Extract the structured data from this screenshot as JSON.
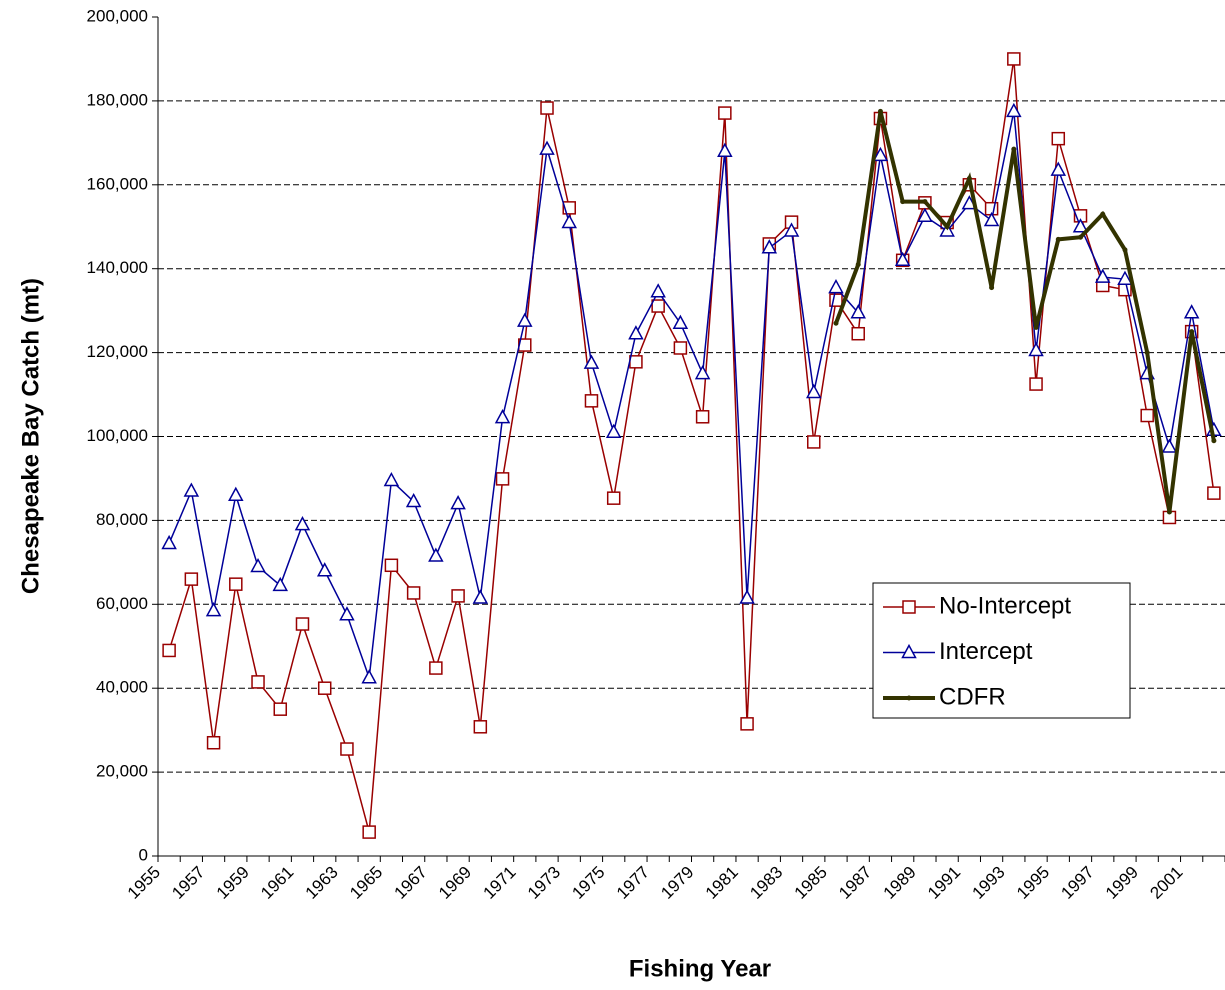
{
  "chart_data": {
    "type": "line",
    "x_label": "Fishing Year",
    "y_label": "Chesapeake Bay Catch (mt)",
    "categories": [
      "1955",
      null,
      "1957",
      null,
      "1959",
      null,
      "1961",
      null,
      "1963",
      null,
      "1965",
      null,
      "1967",
      null,
      "1969",
      null,
      "1971",
      null,
      "1973",
      null,
      "1975",
      null,
      "1977",
      null,
      "1979",
      null,
      "1981",
      null,
      "1983",
      null,
      "1985",
      null,
      "1987",
      null,
      "1989",
      null,
      "1991",
      null,
      "1993",
      null,
      "1995",
      null,
      "1997",
      null,
      "1999",
      null,
      "2001",
      null
    ],
    "ylim": [
      0,
      200000
    ],
    "yticks": [
      0,
      {
        "value": 20000,
        "label": "20,000"
      },
      {
        "value": 40000,
        "label": "40,000"
      },
      {
        "value": 60000,
        "label": "60,000"
      },
      {
        "value": 80000,
        "label": "80,000"
      },
      {
        "value": 100000,
        "label": "100,000"
      },
      {
        "value": 120000,
        "label": "120,000"
      },
      {
        "value": 140000,
        "label": "140,000"
      },
      {
        "value": 160000,
        "label": "160,000"
      },
      {
        "value": 180000,
        "label": "180,000"
      },
      {
        "value": 200000,
        "label": "200,000"
      }
    ],
    "grid": true,
    "legend": "lower right",
    "series": [
      {
        "name": "No-Intercept",
        "color": "#990000",
        "marker": "square",
        "line_width": 1.5,
        "values": [
          49000,
          66000,
          27000,
          64800,
          41500,
          35000,
          55300,
          40000,
          25500,
          5700,
          69300,
          62700,
          44800,
          62000,
          30800,
          89900,
          121800,
          178300,
          154500,
          108500,
          85300,
          117800,
          131100,
          121100,
          104700,
          177100,
          31500,
          145900,
          151100,
          98700,
          132500,
          124500,
          175800,
          142000,
          155700,
          151000,
          160000,
          154300,
          190000,
          112500,
          171000,
          152600,
          136000,
          135000,
          105000,
          80700,
          125000,
          86500
        ]
      },
      {
        "name": "Intercept",
        "color": "#000099",
        "marker": "triangle",
        "line_width": 1.5,
        "values": [
          74500,
          87000,
          58500,
          86000,
          69000,
          64500,
          79000,
          68000,
          57500,
          42500,
          89500,
          84500,
          71500,
          84000,
          61500,
          104500,
          127500,
          168500,
          151000,
          117500,
          101000,
          124500,
          134500,
          127000,
          115000,
          168000,
          61500,
          145000,
          149000,
          110500,
          135500,
          129500,
          167000,
          142000,
          152500,
          149000,
          155500,
          151500,
          177500,
          120500,
          163500,
          150000,
          138000,
          137500,
          115000,
          97500,
          129500,
          101500
        ]
      },
      {
        "name": "CDFR",
        "color": "#333300",
        "marker": "dot",
        "line_width": 4,
        "values": [
          null,
          null,
          null,
          null,
          null,
          null,
          null,
          null,
          null,
          null,
          null,
          null,
          null,
          null,
          null,
          null,
          null,
          null,
          null,
          null,
          null,
          null,
          null,
          null,
          null,
          null,
          null,
          null,
          null,
          null,
          127000,
          141000,
          177500,
          156000,
          156000,
          150000,
          161500,
          135500,
          168500,
          126000,
          147000,
          147500,
          153000,
          144500,
          120000,
          82000,
          125000,
          99000
        ]
      }
    ]
  }
}
